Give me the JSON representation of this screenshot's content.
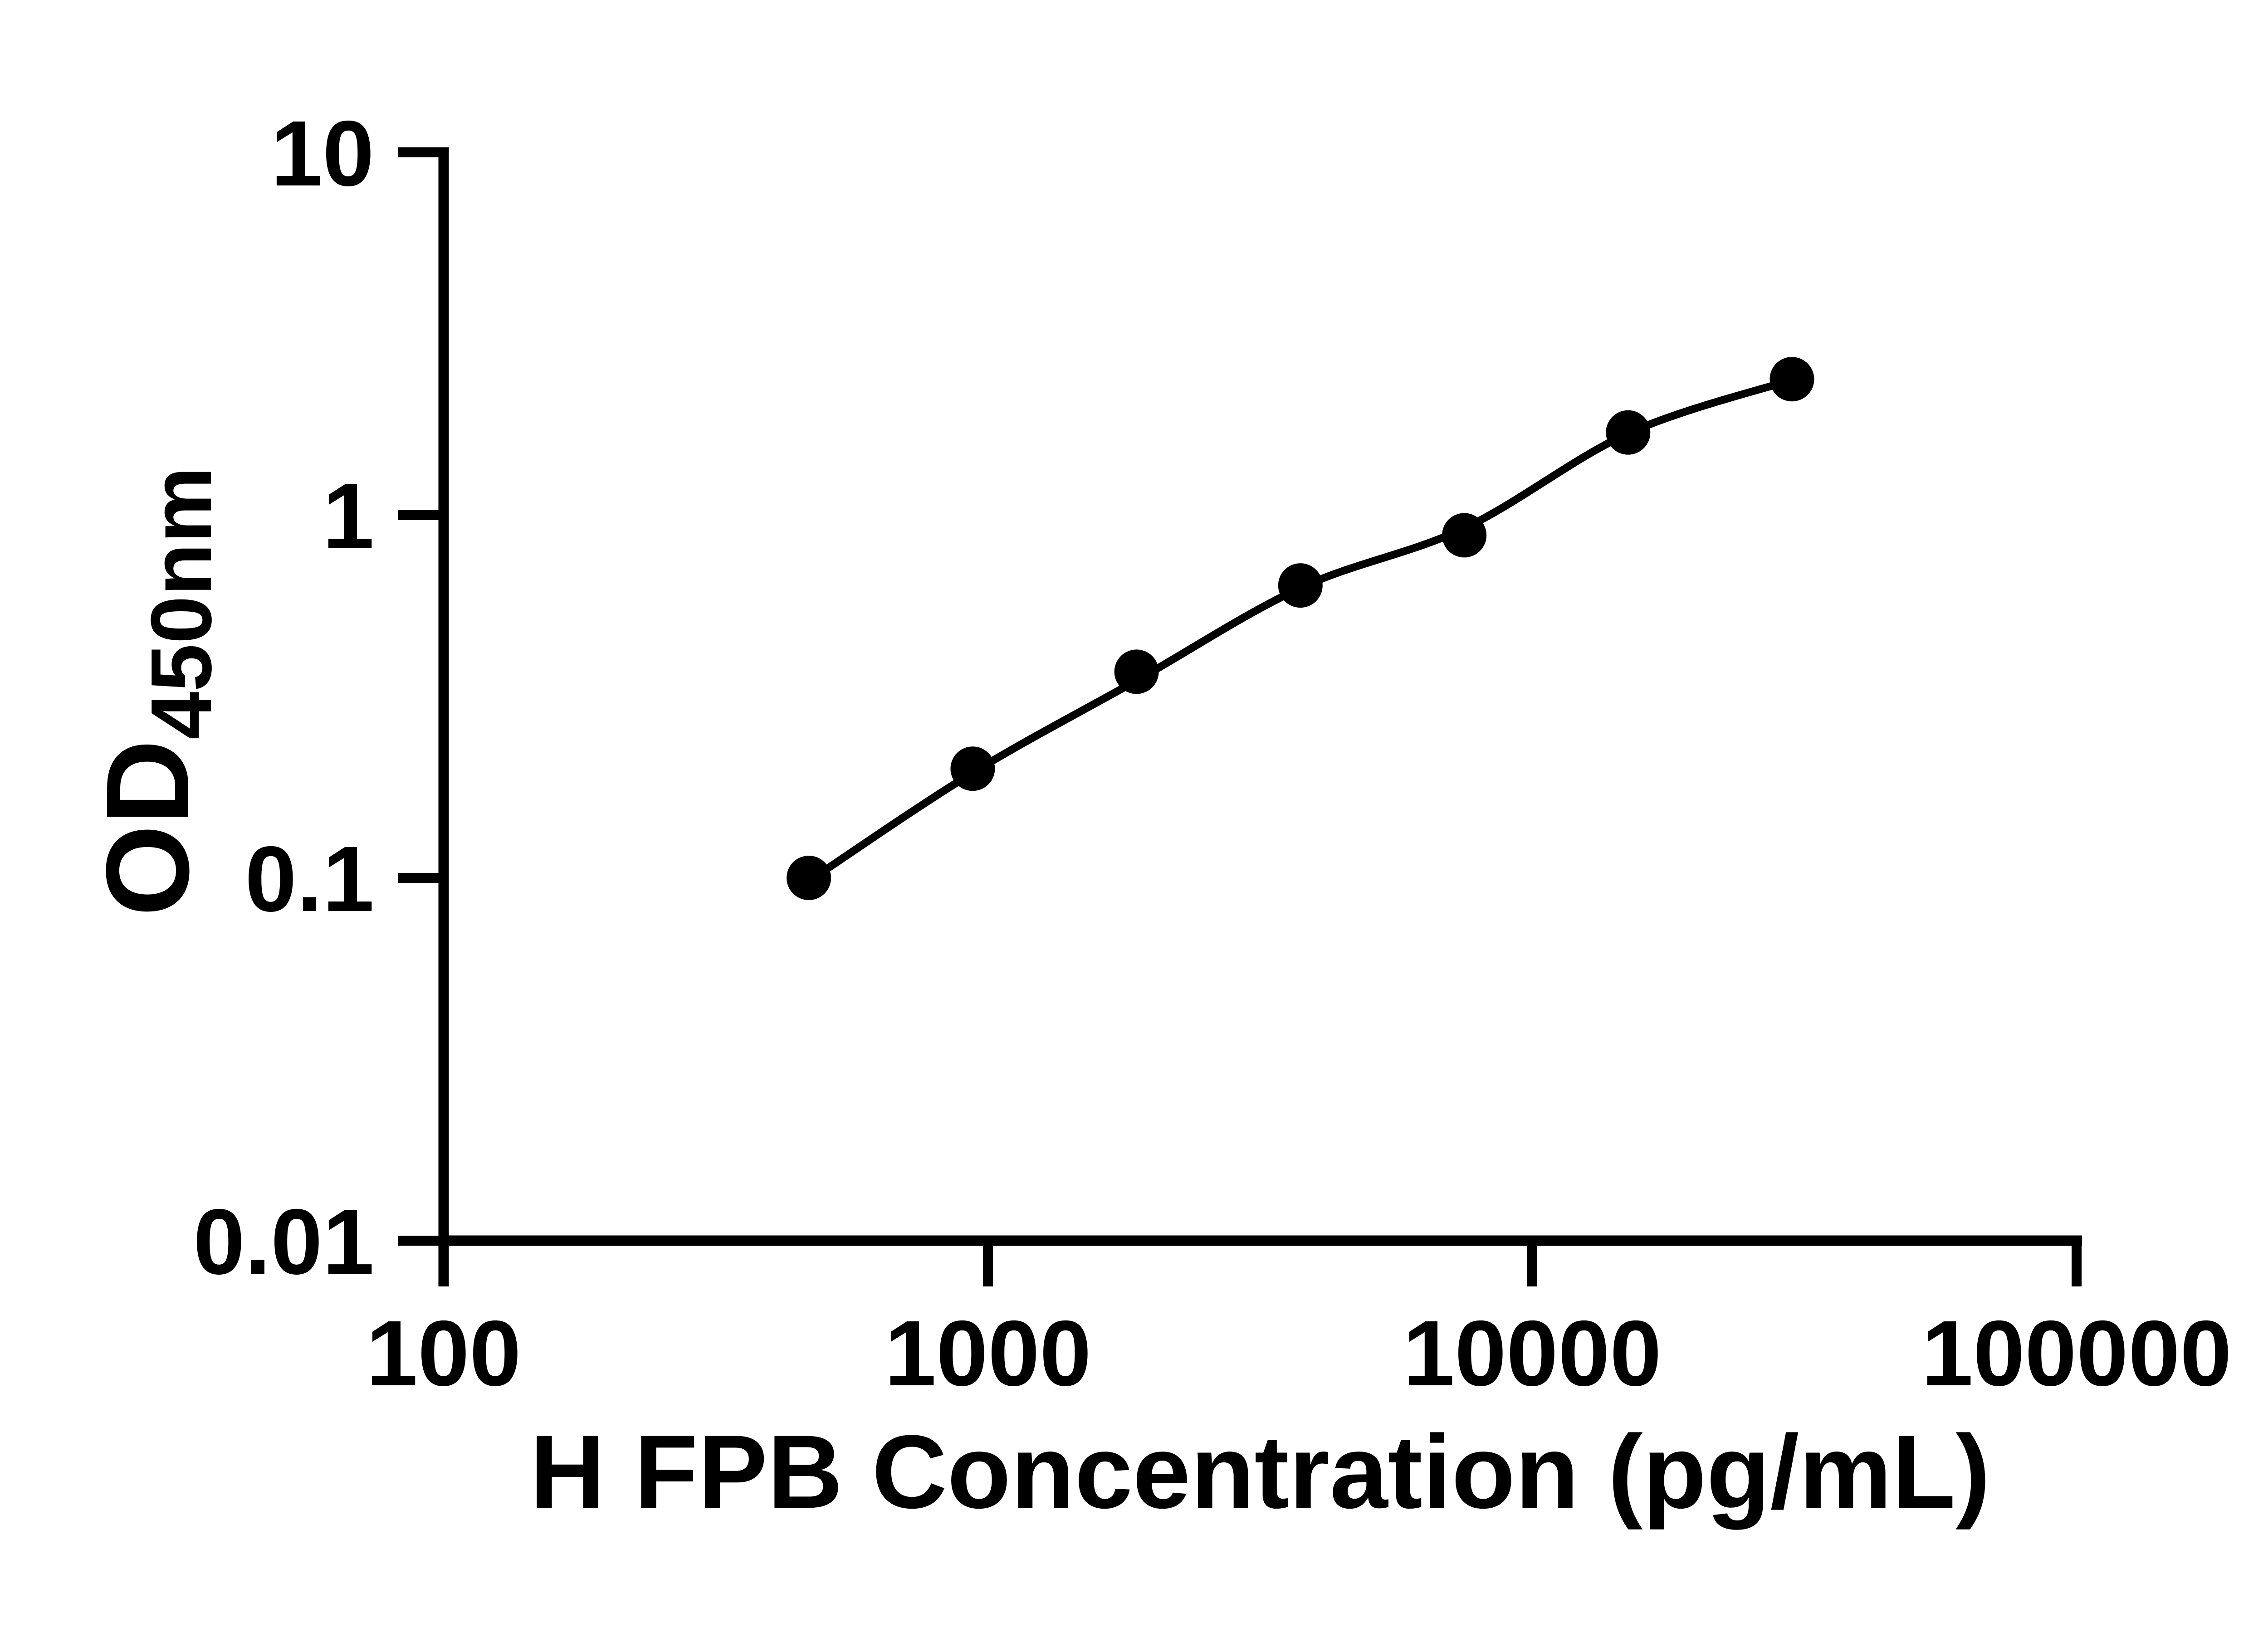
{
  "figure": {
    "background_color": "#ffffff",
    "ink_color": "#000000",
    "description": "ELISA standard curve, log-log scatter plot with fitted line and filled circle markers"
  },
  "chart_data": {
    "type": "scatter",
    "title": "",
    "xlabel": "H FPB Concentration (pg/mL)",
    "ylabel_main": "OD",
    "ylabel_sub": "450nm",
    "x_scale": "log",
    "y_scale": "log",
    "xlim": [
      100,
      100000
    ],
    "ylim": [
      0.01,
      10
    ],
    "grid": "off",
    "legend": "none",
    "x_ticks": [
      {
        "value": 100,
        "label": "100"
      },
      {
        "value": 1000,
        "label": "1000"
      },
      {
        "value": 10000,
        "label": "10000"
      },
      {
        "value": 100000,
        "label": "100000"
      }
    ],
    "y_ticks": [
      {
        "value": 10,
        "label": "10"
      },
      {
        "value": 1,
        "label": "1"
      },
      {
        "value": 0.1,
        "label": "0.1"
      },
      {
        "value": 0.01,
        "label": "0.01"
      }
    ],
    "series": [
      {
        "name": "standard-curve-points",
        "marker": "filled-circle",
        "color": "#000000",
        "points": [
          {
            "x": 468.75,
            "y": 0.1
          },
          {
            "x": 937.5,
            "y": 0.2
          },
          {
            "x": 1875,
            "y": 0.37
          },
          {
            "x": 3750,
            "y": 0.64
          },
          {
            "x": 7500,
            "y": 0.88
          },
          {
            "x": 15000,
            "y": 1.69
          },
          {
            "x": 30000,
            "y": 2.37
          }
        ]
      }
    ],
    "fit_curve": {
      "name": "fitted-line",
      "color": "#000000",
      "points": [
        {
          "x": 468.75,
          "y": 0.098
        },
        {
          "x": 937.5,
          "y": 0.195
        },
        {
          "x": 1875,
          "y": 0.35
        },
        {
          "x": 3750,
          "y": 0.63
        },
        {
          "x": 7500,
          "y": 0.92
        },
        {
          "x": 15000,
          "y": 1.68
        },
        {
          "x": 30000,
          "y": 2.36
        }
      ]
    }
  }
}
